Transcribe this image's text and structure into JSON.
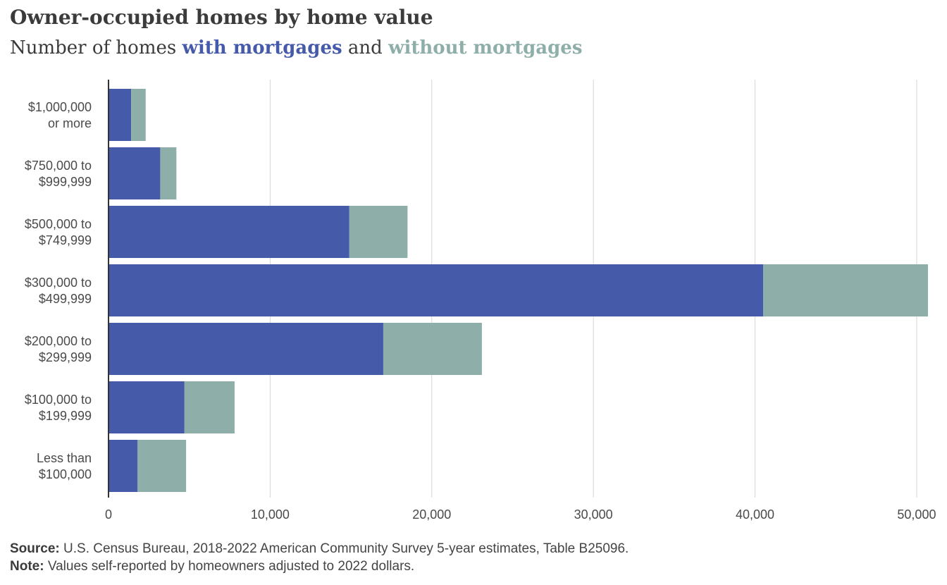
{
  "header": {
    "title": "Owner-occupied homes by home value",
    "subtitle_prefix": "Number of homes",
    "subtitle_with": "with mortgages",
    "subtitle_and": "and",
    "subtitle_without": "without mortgages"
  },
  "colors": {
    "with_mortgages": "#455ba9",
    "without_mortgages": "#8eaeaa",
    "gridline": "#d6d6d6",
    "axis": "#333333"
  },
  "chart_data": {
    "type": "bar",
    "orientation": "horizontal",
    "stacked": true,
    "categories": [
      [
        "$1,000,000",
        "or more"
      ],
      [
        "$750,000 to",
        "$999,999"
      ],
      [
        "$500,000 to",
        "$749,999"
      ],
      [
        "$300,000 to",
        "$499,999"
      ],
      [
        "$200,000 to",
        "$299,999"
      ],
      [
        "$100,000 to",
        "$199,999"
      ],
      [
        "Less than",
        "$100,000"
      ]
    ],
    "series": [
      {
        "name": "with mortgages",
        "color": "#455ba9",
        "values": [
          1400,
          3200,
          14900,
          40500,
          17000,
          4700,
          1800
        ]
      },
      {
        "name": "without mortgages",
        "color": "#8eaeaa",
        "values": [
          900,
          1000,
          3600,
          10200,
          6100,
          3100,
          3000
        ]
      }
    ],
    "xlim": [
      0,
      50700
    ],
    "xticks": [
      0,
      10000,
      20000,
      30000,
      40000,
      50000
    ],
    "xtick_labels": [
      "0",
      "10,000",
      "20,000",
      "30,000",
      "40,000",
      "50,000"
    ],
    "grid": true,
    "legend": "in subtitle"
  },
  "footer": {
    "source_label": "Source:",
    "source_text": "U.S. Census Bureau, 2018-2022 American Community Survey 5-year estimates, Table B25096.",
    "note_label": "Note:",
    "note_text": "Values self-reported by homeowners adjusted to 2022 dollars."
  }
}
